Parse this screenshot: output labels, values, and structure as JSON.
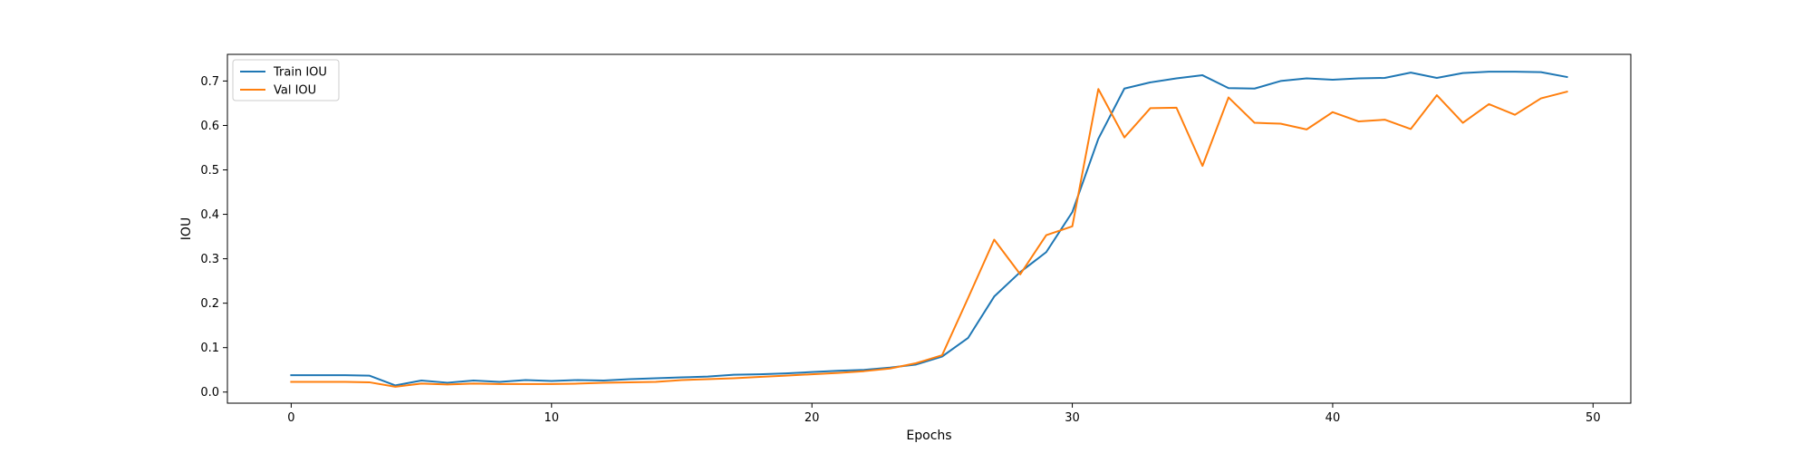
{
  "chart_data": {
    "type": "line",
    "title": "",
    "xlabel": "Epochs",
    "ylabel": "IOU",
    "xlim": [
      -2.45,
      51.45
    ],
    "ylim": [
      -0.025,
      0.76
    ],
    "xticks": [
      0,
      10,
      20,
      30,
      40,
      50
    ],
    "yticks": [
      0.0,
      0.1,
      0.2,
      0.3,
      0.4,
      0.5,
      0.6,
      0.7
    ],
    "grid": false,
    "legend_position": "top-left",
    "x": [
      0,
      1,
      2,
      3,
      4,
      5,
      6,
      7,
      8,
      9,
      10,
      11,
      12,
      13,
      14,
      15,
      16,
      17,
      18,
      19,
      20,
      21,
      22,
      23,
      24,
      25,
      26,
      27,
      28,
      29,
      30,
      31,
      32,
      33,
      34,
      35,
      36,
      37,
      38,
      39,
      40,
      41,
      42,
      43,
      44,
      45,
      46,
      47,
      48,
      49
    ],
    "series": [
      {
        "name": "Train IOU",
        "color": "#1f77b4",
        "values": [
          0.038,
          0.038,
          0.038,
          0.037,
          0.015,
          0.026,
          0.021,
          0.026,
          0.023,
          0.027,
          0.025,
          0.027,
          0.026,
          0.029,
          0.031,
          0.033,
          0.035,
          0.039,
          0.04,
          0.042,
          0.045,
          0.048,
          0.05,
          0.055,
          0.062,
          0.08,
          0.122,
          0.215,
          0.27,
          0.315,
          0.405,
          0.57,
          0.683,
          0.697,
          0.706,
          0.713,
          0.684,
          0.683,
          0.7,
          0.706,
          0.703,
          0.706,
          0.707,
          0.719,
          0.707,
          0.718,
          0.721,
          0.721,
          0.72,
          0.709
        ]
      },
      {
        "name": "Val IOU",
        "color": "#ff7f0e",
        "values": [
          0.023,
          0.023,
          0.023,
          0.022,
          0.012,
          0.019,
          0.017,
          0.019,
          0.018,
          0.018,
          0.018,
          0.019,
          0.021,
          0.022,
          0.023,
          0.027,
          0.029,
          0.031,
          0.034,
          0.037,
          0.04,
          0.043,
          0.047,
          0.053,
          0.065,
          0.083,
          0.212,
          0.343,
          0.265,
          0.353,
          0.373,
          0.682,
          0.573,
          0.639,
          0.64,
          0.509,
          0.663,
          0.606,
          0.604,
          0.591,
          0.63,
          0.609,
          0.613,
          0.592,
          0.668,
          0.606,
          0.648,
          0.624,
          0.661,
          0.676
        ]
      }
    ]
  }
}
